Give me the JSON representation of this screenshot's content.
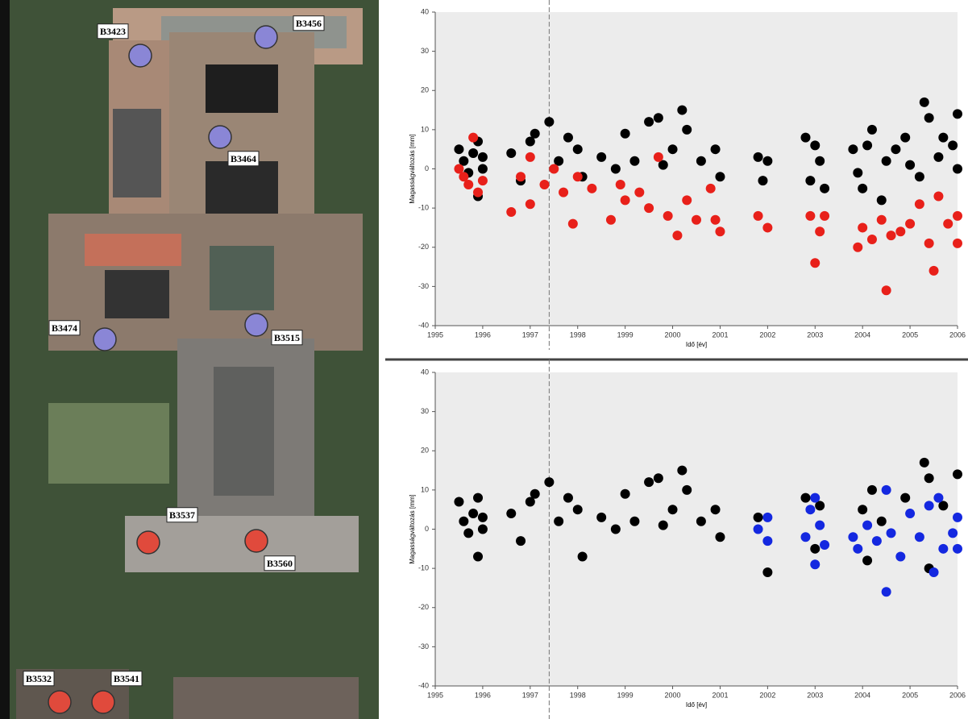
{
  "map": {
    "markers": [
      {
        "label": "B3423",
        "color": "#8a86d6"
      },
      {
        "label": "B3456",
        "color": "#8a86d6"
      },
      {
        "label": "B3464",
        "color": "#8a86d6"
      },
      {
        "label": "B3474",
        "color": "#8a86d6"
      },
      {
        "label": "B3515",
        "color": "#8a86d6"
      },
      {
        "label": "B3537",
        "color": "#e04a3c"
      },
      {
        "label": "B3560",
        "color": "#e04a3c"
      },
      {
        "label": "B3532",
        "color": "#e04a3c"
      },
      {
        "label": "B3541",
        "color": "#e04a3c"
      }
    ]
  },
  "chart_data": [
    {
      "type": "scatter",
      "xlabel": "Idő [év]",
      "ylabel": "Magasságváltozás [mm]",
      "xlim": [
        1995,
        2006
      ],
      "xticks": [
        1995,
        1996,
        1997,
        1998,
        1999,
        2000,
        2001,
        2002,
        2003,
        2004,
        2005,
        2006
      ],
      "ylim": [
        -40,
        40
      ],
      "yticks": [
        -40,
        -30,
        -20,
        -10,
        0,
        10,
        20,
        30,
        40
      ],
      "vline": 1997.4,
      "series": [
        {
          "color": "#000000",
          "x": [
            1995.5,
            1995.6,
            1995.7,
            1995.8,
            1995.9,
            1996.0,
            1995.9,
            1996.0,
            1996.6,
            1996.8,
            1997.0,
            1997.1,
            1997.4,
            1997.6,
            1997.8,
            1998.0,
            1998.1,
            1998.5,
            1998.8,
            1999.0,
            1999.2,
            1999.5,
            1999.7,
            1999.8,
            2000.0,
            2000.2,
            2000.3,
            2000.6,
            2000.9,
            2001.0,
            2001.8,
            2001.9,
            2002.0,
            2002.8,
            2002.9,
            2003.0,
            2003.1,
            2003.2,
            2003.8,
            2003.9,
            2004.0,
            2004.1,
            2004.2,
            2004.4,
            2004.5,
            2004.7,
            2004.9,
            2005.0,
            2005.2,
            2005.3,
            2005.4,
            2005.6,
            2005.7,
            2005.9,
            2006.0,
            2006.0
          ],
          "values": [
            5,
            2,
            -1,
            4,
            7,
            0,
            -7,
            3,
            4,
            -3,
            7,
            9,
            12,
            2,
            8,
            5,
            -2,
            3,
            0,
            9,
            2,
            12,
            13,
            1,
            5,
            15,
            10,
            2,
            5,
            -2,
            3,
            -3,
            2,
            8,
            -3,
            6,
            2,
            -5,
            5,
            -1,
            -5,
            6,
            10,
            -8,
            2,
            5,
            8,
            1,
            -2,
            17,
            13,
            3,
            8,
            6,
            14,
            0
          ]
        },
        {
          "color": "#e8201a",
          "x": [
            1995.5,
            1995.6,
            1995.7,
            1995.8,
            1995.9,
            1996.0,
            1996.6,
            1996.8,
            1997.0,
            1997.0,
            1997.3,
            1997.5,
            1997.7,
            1997.9,
            1998.0,
            1998.3,
            1998.7,
            1998.9,
            1999.0,
            1999.3,
            1999.5,
            1999.7,
            1999.9,
            2000.1,
            2000.3,
            2000.5,
            2000.8,
            2000.9,
            2001.0,
            2001.8,
            2002.0,
            2002.9,
            2003.0,
            2003.1,
            2003.2,
            2003.9,
            2004.0,
            2004.2,
            2004.4,
            2004.5,
            2004.6,
            2004.8,
            2005.0,
            2005.2,
            2005.4,
            2005.5,
            2005.6,
            2005.8,
            2006.0,
            2006.0
          ],
          "values": [
            0,
            -2,
            -4,
            8,
            -6,
            -3,
            -11,
            -2,
            3,
            -9,
            -4,
            0,
            -6,
            -14,
            -2,
            -5,
            -13,
            -4,
            -8,
            -6,
            -10,
            3,
            -12,
            -17,
            -8,
            -13,
            -5,
            -13,
            -16,
            -12,
            -15,
            -12,
            -24,
            -16,
            -12,
            -20,
            -15,
            -18,
            -13,
            -31,
            -17,
            -16,
            -14,
            -9,
            -19,
            -26,
            -7,
            -14,
            -19,
            -12
          ]
        }
      ]
    },
    {
      "type": "scatter",
      "xlabel": "Idő [év]",
      "ylabel": "Magasságváltozás [mm]",
      "xlim": [
        1995,
        2006
      ],
      "xticks": [
        1995,
        1996,
        1997,
        1998,
        1999,
        2000,
        2001,
        2002,
        2003,
        2004,
        2005,
        2006
      ],
      "ylim": [
        -40,
        40
      ],
      "yticks": [
        -40,
        -30,
        -20,
        -10,
        0,
        10,
        20,
        30,
        40
      ],
      "vline": 1997.4,
      "series": [
        {
          "color": "#000000",
          "x": [
            1995.5,
            1995.6,
            1995.7,
            1995.8,
            1995.9,
            1996.0,
            1995.9,
            1996.0,
            1996.6,
            1996.8,
            1997.0,
            1997.1,
            1997.4,
            1997.6,
            1997.8,
            1998.0,
            1998.1,
            1998.5,
            1998.8,
            1999.0,
            1999.2,
            1999.5,
            1999.7,
            1999.8,
            2000.0,
            2000.2,
            2000.3,
            2000.6,
            2000.9,
            2001.0,
            2001.8,
            2002.0,
            2002.8,
            2003.0,
            2003.1,
            2004.0,
            2004.1,
            2004.2,
            2004.4,
            2004.9,
            2005.3,
            2005.4,
            2005.4,
            2005.7,
            2006.0
          ],
          "values": [
            7,
            2,
            -1,
            4,
            8,
            0,
            -7,
            3,
            4,
            -3,
            7,
            9,
            12,
            2,
            8,
            5,
            -7,
            3,
            0,
            9,
            2,
            12,
            13,
            1,
            5,
            15,
            10,
            2,
            5,
            -2,
            3,
            -11,
            8,
            -5,
            6,
            5,
            -8,
            10,
            2,
            8,
            17,
            -10,
            13,
            6,
            14
          ]
        },
        {
          "color": "#1428e0",
          "x": [
            2001.8,
            2002.0,
            2002.0,
            2002.8,
            2002.9,
            2003.0,
            2003.0,
            2003.1,
            2003.2,
            2003.8,
            2003.9,
            2004.1,
            2004.3,
            2004.5,
            2004.5,
            2004.6,
            2004.8,
            2005.0,
            2005.2,
            2005.4,
            2005.5,
            2005.6,
            2005.7,
            2005.9,
            2006.0,
            2006.0
          ],
          "values": [
            0,
            3,
            -3,
            -2,
            5,
            -9,
            8,
            1,
            -4,
            -2,
            -5,
            1,
            -3,
            -16,
            10,
            -1,
            -7,
            4,
            -2,
            6,
            -11,
            8,
            -5,
            -1,
            3,
            -5
          ]
        }
      ]
    }
  ]
}
